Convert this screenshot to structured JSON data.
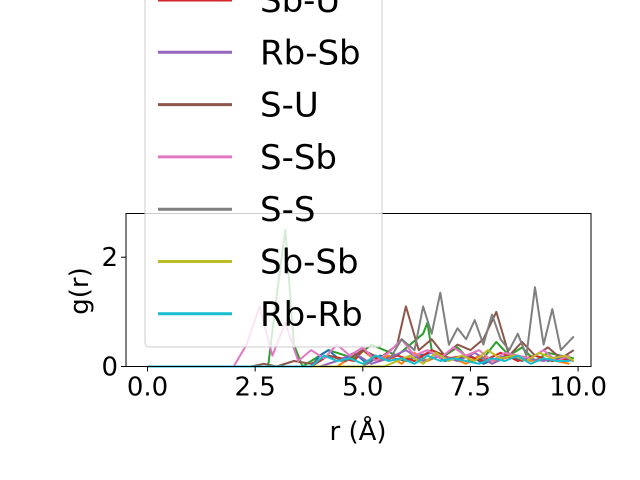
{
  "chart_data": {
    "type": "line",
    "xlabel": "r (Å)",
    "ylabel": "g(r)",
    "xlim": [
      -0.5,
      10.3
    ],
    "ylim": [
      0,
      2.8
    ],
    "xticks": [
      0.0,
      2.5,
      5.0,
      7.5,
      10.0
    ],
    "xtick_labels": [
      "0.0",
      "2.5",
      "5.0",
      "7.5",
      "10.0"
    ],
    "yticks": [
      0,
      2
    ],
    "ytick_labels": [
      "0",
      "2"
    ],
    "grid": false,
    "legend_position": "upper-left, overflowing above the plot area",
    "series": [
      {
        "name": "Sb-U",
        "color": "#d62728",
        "x": [
          0,
          3.8,
          4.2,
          4.8,
          5.0,
          5.4,
          5.8,
          6.2,
          6.6,
          7.0,
          7.4,
          7.8,
          8.2,
          8.6,
          9.0,
          9.4,
          9.8
        ],
        "y": [
          0,
          0,
          0.2,
          0.1,
          0.3,
          0.1,
          0.2,
          0.1,
          0.3,
          0.15,
          0.2,
          0.1,
          0.25,
          0.1,
          0.2,
          0.1,
          0.15
        ]
      },
      {
        "name": "Rb-Sb",
        "color": "#9467bd",
        "x": [
          0,
          4.0,
          4.4,
          4.8,
          5.2,
          5.6,
          6.0,
          6.4,
          6.8,
          7.2,
          7.6,
          8.0,
          8.4,
          8.8,
          9.2,
          9.6,
          9.9
        ],
        "y": [
          0,
          0,
          0.1,
          0.25,
          0.05,
          0.15,
          0.3,
          0.1,
          0.2,
          0.1,
          0.25,
          0.05,
          0.2,
          0.15,
          0.1,
          0.2,
          0.1
        ]
      },
      {
        "name": "S-U",
        "color": "#8c564b",
        "x": [
          0,
          2.4,
          2.7,
          3.0,
          3.4,
          3.8,
          4.2,
          4.6,
          5.0,
          5.4,
          5.8,
          6.0,
          6.3,
          6.6,
          6.9,
          7.2,
          7.5,
          7.8,
          8.1,
          8.4,
          8.7,
          9.0,
          9.3,
          9.6,
          9.9
        ],
        "y": [
          0,
          0,
          0.05,
          0,
          0.1,
          0.05,
          0.2,
          0.1,
          0.3,
          0.15,
          0.4,
          1.1,
          0.3,
          0.5,
          0.2,
          0.4,
          0.3,
          0.5,
          1.0,
          0.2,
          0.45,
          0.2,
          0.35,
          0.15,
          0.3
        ]
      },
      {
        "name": "S-Sb",
        "color": "#e377c2",
        "x": [
          0,
          2.0,
          2.3,
          2.6,
          2.9,
          3.2,
          3.5,
          3.8,
          4.1,
          4.4,
          4.7,
          5.0,
          5.3,
          5.6,
          5.9,
          6.2,
          6.5,
          6.8,
          7.1,
          7.4,
          7.7,
          8.0,
          8.3,
          8.6,
          8.9,
          9.2,
          9.5,
          9.8
        ],
        "y": [
          0,
          0,
          0.4,
          1.1,
          0.2,
          0.8,
          0.1,
          0.3,
          0.15,
          0.4,
          0.2,
          0.35,
          0.1,
          0.25,
          0.5,
          0.2,
          0.3,
          0.15,
          0.35,
          0.2,
          0.3,
          0.1,
          0.25,
          0.2,
          0.15,
          0.3,
          0.1,
          0.2
        ]
      },
      {
        "name": "S-S",
        "color": "#7f7f7f",
        "x": [
          0,
          5.0,
          5.3,
          5.6,
          5.9,
          6.2,
          6.4,
          6.6,
          6.8,
          7.0,
          7.2,
          7.4,
          7.6,
          7.8,
          8.0,
          8.2,
          8.4,
          8.6,
          8.8,
          9.0,
          9.2,
          9.4,
          9.6,
          9.9
        ],
        "y": [
          0,
          0,
          0.2,
          0.1,
          0.5,
          0.3,
          1.1,
          0.6,
          1.35,
          0.4,
          0.7,
          0.5,
          0.85,
          0.4,
          0.95,
          0.5,
          0.3,
          0.6,
          0.2,
          1.45,
          0.4,
          1.05,
          0.3,
          0.55
        ]
      },
      {
        "name": "Sb-Sb",
        "color": "#bcbd22",
        "x": [
          0,
          5.5,
          5.8,
          6.1,
          6.4,
          6.7,
          7.0,
          7.3,
          7.6,
          7.9,
          8.2,
          8.5,
          8.8,
          9.1,
          9.4,
          9.7,
          9.9
        ],
        "y": [
          0,
          0,
          0.1,
          0.2,
          0.05,
          0.25,
          0.1,
          0.2,
          0.1,
          0.3,
          0.15,
          0.2,
          0.1,
          0.25,
          0.15,
          0.2,
          0.1
        ]
      },
      {
        "name": "Rb-Rb",
        "color": "#17becf",
        "x": [
          0,
          3.8,
          4.1,
          4.4,
          4.7,
          5.0,
          5.3,
          5.6,
          5.9,
          6.2,
          6.5,
          6.8,
          7.1,
          7.4,
          7.7,
          8.0,
          8.3,
          8.6,
          8.9,
          9.2,
          9.5,
          9.8
        ],
        "y": [
          0,
          0,
          0.2,
          0.1,
          0.15,
          0.05,
          0.2,
          0.1,
          0.15,
          0.05,
          0.2,
          0.1,
          0.15,
          0.1,
          0.05,
          0.15,
          0.1,
          0.2,
          0.05,
          0.15,
          0.1,
          0.1
        ]
      }
    ],
    "partially_hidden_series": [
      {
        "color": "#2ca02c",
        "x": [
          0,
          2.8,
          3.0,
          3.2,
          3.4,
          3.6,
          4.2,
          4.8,
          5.2,
          5.8,
          6.4,
          6.5,
          6.6,
          6.9,
          7.2,
          7.5,
          7.8,
          8.1,
          8.4,
          8.7,
          9.0,
          9.3,
          9.6,
          9.9
        ],
        "y": [
          0,
          0,
          1.3,
          2.5,
          0.4,
          0,
          0.3,
          0.15,
          0.4,
          0.2,
          0.6,
          0.8,
          0.3,
          0.2,
          0.35,
          0.1,
          0.15,
          0.45,
          0.2,
          0.35,
          0.1,
          0.25,
          0.2,
          0.15
        ]
      },
      {
        "color": "#1f77b4",
        "x": [
          0,
          3.8,
          4.0,
          4.2,
          4.5,
          4.8,
          5.1,
          5.4,
          5.7,
          6.0,
          6.3,
          6.6,
          6.9,
          7.2,
          7.5,
          7.8,
          8.1,
          8.4,
          8.7,
          9.0,
          9.3,
          9.6,
          9.9
        ],
        "y": [
          0,
          0,
          0.2,
          0.3,
          0.1,
          0.25,
          0.05,
          0.2,
          0.15,
          0.1,
          0.2,
          0.25,
          0.1,
          0.15,
          0.2,
          0.05,
          0.15,
          0.2,
          0.1,
          0.2,
          0.1,
          0.15,
          0.1
        ]
      },
      {
        "color": "#ff7f0e",
        "x": [
          0,
          4.4,
          4.7,
          5.0,
          5.3,
          5.6,
          5.9,
          6.2,
          6.5,
          6.8,
          7.1,
          7.4,
          7.7,
          8.0,
          8.3,
          8.6,
          8.9,
          9.2,
          9.5,
          9.8
        ],
        "y": [
          0,
          0,
          0.15,
          0.3,
          0.1,
          0.2,
          0.05,
          0.25,
          0.1,
          0.2,
          0.15,
          0.05,
          0.2,
          0.1,
          0.15,
          0.2,
          0.1,
          0.15,
          0.1,
          0.05
        ]
      }
    ]
  }
}
